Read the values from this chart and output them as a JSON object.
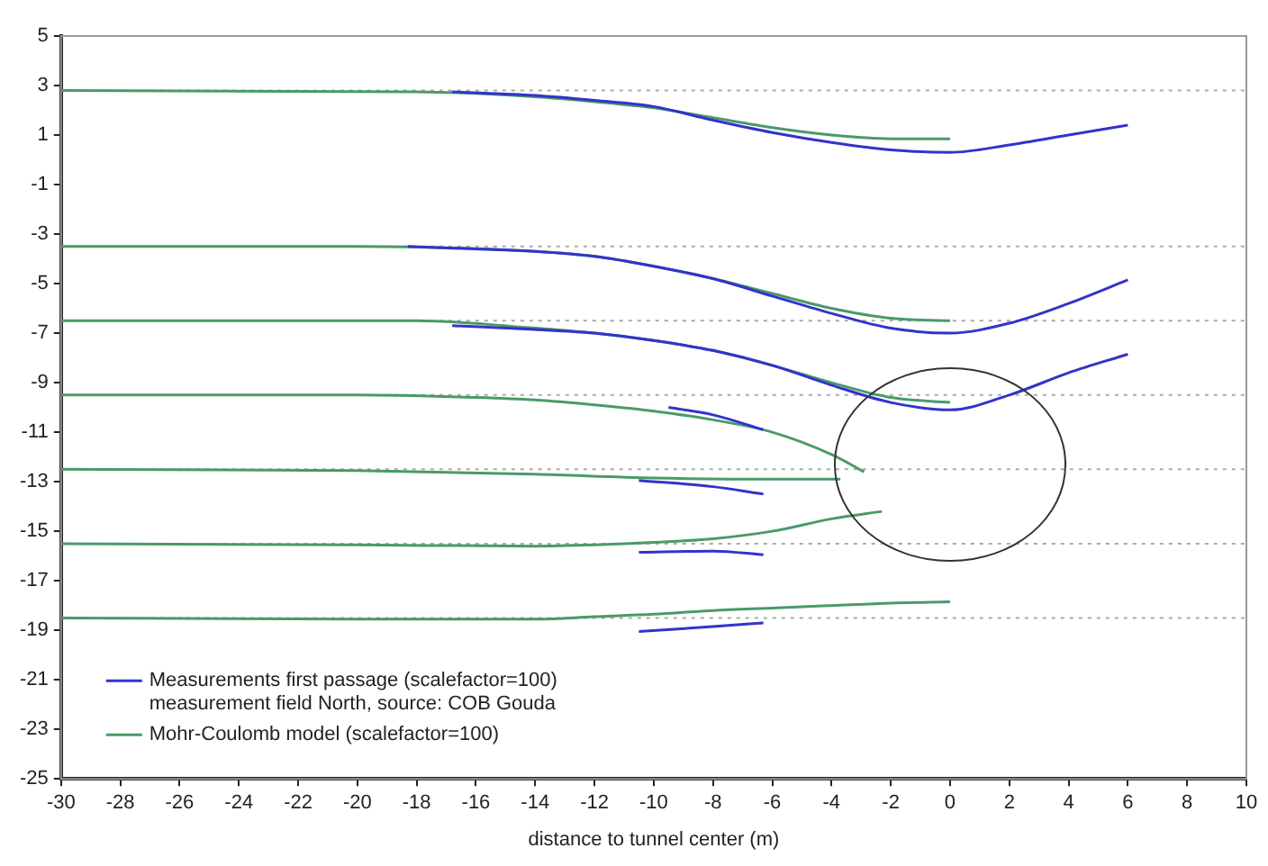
{
  "chart_data": {
    "type": "line",
    "xlabel": "distance to tunnel center (m)",
    "xlim": [
      -30,
      10
    ],
    "xticks": [
      -30,
      -28,
      -26,
      -24,
      -22,
      -20,
      -18,
      -16,
      -14,
      -12,
      -10,
      -8,
      -6,
      -4,
      -2,
      0,
      2,
      4,
      6,
      8,
      10
    ],
    "ylim": [
      -25,
      5
    ],
    "yticks": [
      5,
      3,
      1,
      -1,
      -3,
      -5,
      -7,
      -9,
      -11,
      -13,
      -15,
      -17,
      -19,
      -21,
      -23,
      -25
    ],
    "grid": false,
    "legend": "bottom left",
    "marker": "none",
    "line_style": "solid",
    "ref_lines": [
      {
        "axis": "y",
        "value": 2.8,
        "color": "#aaaaaa",
        "line_style": "dotted"
      },
      {
        "axis": "y",
        "value": -3.5,
        "color": "#aaaaaa",
        "line_style": "dotted"
      },
      {
        "axis": "y",
        "value": -6.5,
        "color": "#aaaaaa",
        "line_style": "dotted"
      },
      {
        "axis": "y",
        "value": -9.5,
        "color": "#aaaaaa",
        "line_style": "dotted"
      },
      {
        "axis": "y",
        "value": -12.5,
        "color": "#aaaaaa",
        "line_style": "dotted"
      },
      {
        "axis": "y",
        "value": -15.5,
        "color": "#aaaaaa",
        "line_style": "dotted"
      },
      {
        "axis": "y",
        "value": -18.5,
        "color": "#aaaaaa",
        "line_style": "dotted"
      }
    ],
    "series": [
      {
        "name": "Measurements first passage (scalefactor=100)\nmeasurement field North, source: COB Gouda",
        "color": "#3333cc",
        "x": [
          -16.8,
          -14,
          -12,
          -10,
          -8,
          -6,
          -4,
          -2,
          0,
          2,
          4,
          6
        ],
        "values": [
          2.75,
          2.6,
          2.4,
          2.15,
          1.6,
          1.1,
          0.7,
          0.4,
          0.3,
          0.6,
          1.0,
          1.4
        ]
      },
      {
        "color": "#3333cc",
        "x": [
          -18.3,
          -16,
          -14,
          -12,
          -10,
          -8,
          -6,
          -4,
          -2,
          0,
          2,
          4,
          6
        ],
        "values": [
          -3.5,
          -3.6,
          -3.7,
          -3.9,
          -4.3,
          -4.8,
          -5.5,
          -6.2,
          -6.8,
          -7.0,
          -6.6,
          -5.8,
          -4.85
        ]
      },
      {
        "color": "#3333cc",
        "x": [
          -16.8,
          -14,
          -12,
          -10,
          -8,
          -6,
          -4,
          -2,
          0,
          2,
          4,
          6
        ],
        "values": [
          -6.7,
          -6.85,
          -7.0,
          -7.3,
          -7.7,
          -8.3,
          -9.1,
          -9.8,
          -10.1,
          -9.5,
          -8.6,
          -7.85
        ]
      },
      {
        "color": "#3333cc",
        "x": [
          -9.5,
          -8,
          -6.3
        ],
        "values": [
          -10.0,
          -10.3,
          -10.9
        ]
      },
      {
        "color": "#3333cc",
        "x": [
          -10.5,
          -8,
          -6.3
        ],
        "values": [
          -12.95,
          -13.2,
          -13.5
        ]
      },
      {
        "color": "#3333cc",
        "x": [
          -10.5,
          -8,
          -6.3
        ],
        "values": [
          -15.85,
          -15.8,
          -15.95
        ]
      },
      {
        "color": "#3333cc",
        "x": [
          -10.5,
          -8,
          -6.3
        ],
        "values": [
          -19.05,
          -18.85,
          -18.7
        ]
      },
      {
        "name": "Mohr-Coulomb model (scalefactor=100)",
        "color": "#4a9a6a",
        "x": [
          -30,
          -18,
          -14,
          -12,
          -10,
          -8,
          -6,
          -4,
          -2,
          0
        ],
        "values": [
          2.8,
          2.75,
          2.55,
          2.35,
          2.1,
          1.7,
          1.3,
          1.0,
          0.85,
          0.85
        ]
      },
      {
        "color": "#4a9a6a",
        "x": [
          -30,
          -20,
          -14,
          -12,
          -10,
          -8,
          -6,
          -4,
          -2,
          0
        ],
        "values": [
          -3.5,
          -3.5,
          -3.7,
          -3.9,
          -4.3,
          -4.8,
          -5.4,
          -6.0,
          -6.4,
          -6.5
        ]
      },
      {
        "color": "#4a9a6a",
        "x": [
          -30,
          -18,
          -14,
          -12,
          -10,
          -8,
          -6,
          -4,
          -2,
          0
        ],
        "values": [
          -6.5,
          -6.5,
          -6.8,
          -7.0,
          -7.3,
          -7.7,
          -8.3,
          -9.0,
          -9.6,
          -9.8
        ]
      },
      {
        "color": "#4a9a6a",
        "x": [
          -30,
          -20,
          -16,
          -14,
          -12,
          -10,
          -8,
          -6,
          -4,
          -2.9
        ],
        "values": [
          -9.5,
          -9.5,
          -9.6,
          -9.7,
          -9.9,
          -10.15,
          -10.5,
          -11.0,
          -11.9,
          -12.6
        ]
      },
      {
        "color": "#4a9a6a",
        "x": [
          -30,
          -20,
          -14,
          -10,
          -6,
          -3.7
        ],
        "values": [
          -12.5,
          -12.55,
          -12.7,
          -12.85,
          -12.9,
          -12.9
        ]
      },
      {
        "color": "#4a9a6a",
        "x": [
          -30,
          -20,
          -14,
          -12,
          -10,
          -8,
          -6,
          -4,
          -2.3
        ],
        "values": [
          -15.5,
          -15.55,
          -15.6,
          -15.55,
          -15.45,
          -15.3,
          -15.0,
          -14.5,
          -14.2
        ]
      },
      {
        "color": "#4a9a6a",
        "x": [
          -30,
          -20,
          -14,
          -12,
          -10,
          -8,
          -6,
          -4,
          -2,
          0
        ],
        "values": [
          -18.5,
          -18.55,
          -18.55,
          -18.45,
          -18.35,
          -18.2,
          -18.1,
          -18.0,
          -17.9,
          -17.85
        ]
      }
    ]
  }
}
